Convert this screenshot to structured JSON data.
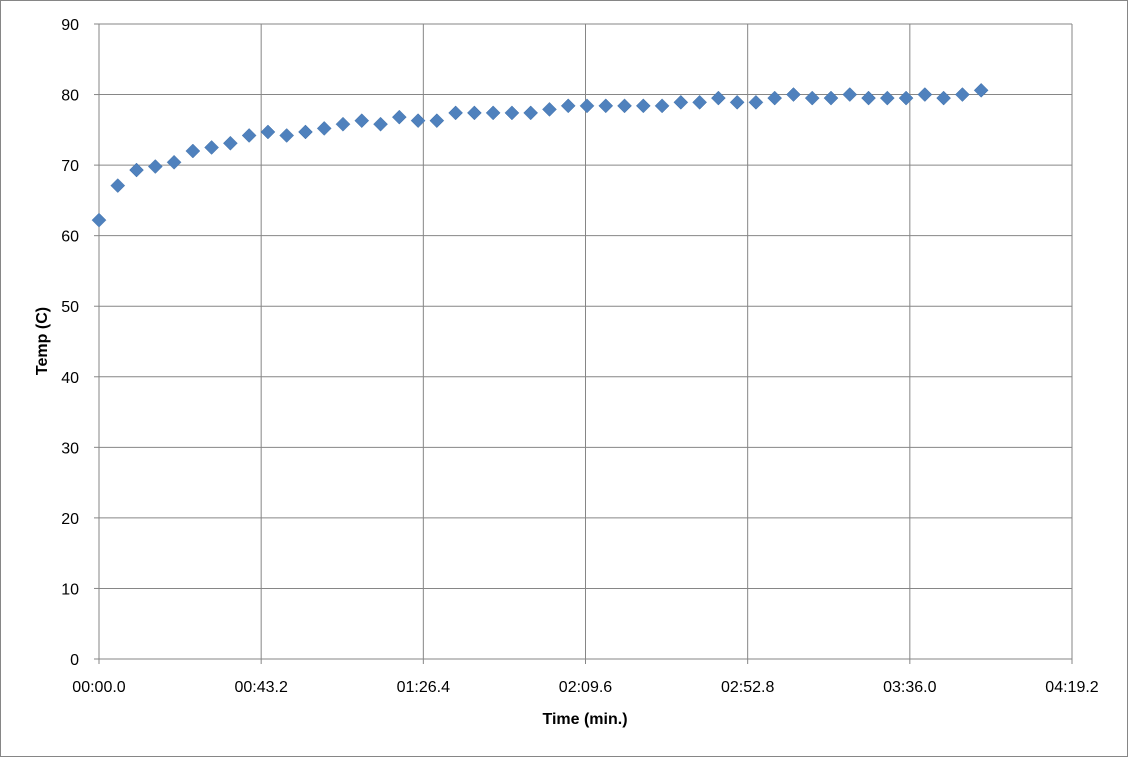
{
  "chart_data": {
    "type": "scatter",
    "title": "",
    "xlabel": "Time (min.)",
    "ylabel": "Temp (C)",
    "xlim": [
      0,
      259.2
    ],
    "ylim": [
      0,
      90
    ],
    "x_unit": "seconds",
    "x_ticks": [
      0,
      43.2,
      86.4,
      129.6,
      172.8,
      216.0,
      259.2
    ],
    "x_tick_labels": [
      "00:00.0",
      "00:43.2",
      "01:26.4",
      "02:09.6",
      "02:52.8",
      "03:36.0",
      "04:19.2"
    ],
    "y_ticks": [
      0,
      10,
      20,
      30,
      40,
      50,
      60,
      70,
      80,
      90
    ],
    "y_tick_labels": [
      "0",
      "10",
      "20",
      "30",
      "40",
      "50",
      "60",
      "70",
      "80",
      "90"
    ],
    "grid": true,
    "legend": "none",
    "marker": "diamond",
    "color": "#4F81BD",
    "series": [
      {
        "x": [
          0,
          5,
          10,
          15,
          20,
          25,
          30,
          35,
          40,
          45,
          50,
          55,
          60,
          65,
          70,
          75,
          80,
          85,
          90,
          95,
          100,
          105,
          110,
          115,
          120,
          125,
          130,
          135,
          140,
          145,
          150,
          155,
          160,
          165,
          170,
          175,
          180,
          185,
          190,
          195,
          200,
          205,
          210,
          215,
          220,
          225,
          230,
          235
        ],
        "y": [
          62.2,
          67.1,
          69.3,
          69.8,
          70.4,
          72.0,
          72.5,
          73.1,
          74.2,
          74.7,
          74.2,
          74.7,
          75.2,
          75.8,
          76.3,
          75.8,
          76.8,
          76.3,
          76.3,
          77.4,
          77.4,
          77.4,
          77.4,
          77.4,
          77.9,
          78.4,
          78.4,
          78.4,
          78.4,
          78.4,
          78.4,
          78.9,
          78.9,
          79.5,
          78.9,
          78.9,
          79.5,
          80.0,
          79.5,
          79.5,
          80.0,
          79.5,
          79.5,
          79.5,
          80.0,
          79.5,
          80.0,
          80.6
        ]
      }
    ]
  }
}
